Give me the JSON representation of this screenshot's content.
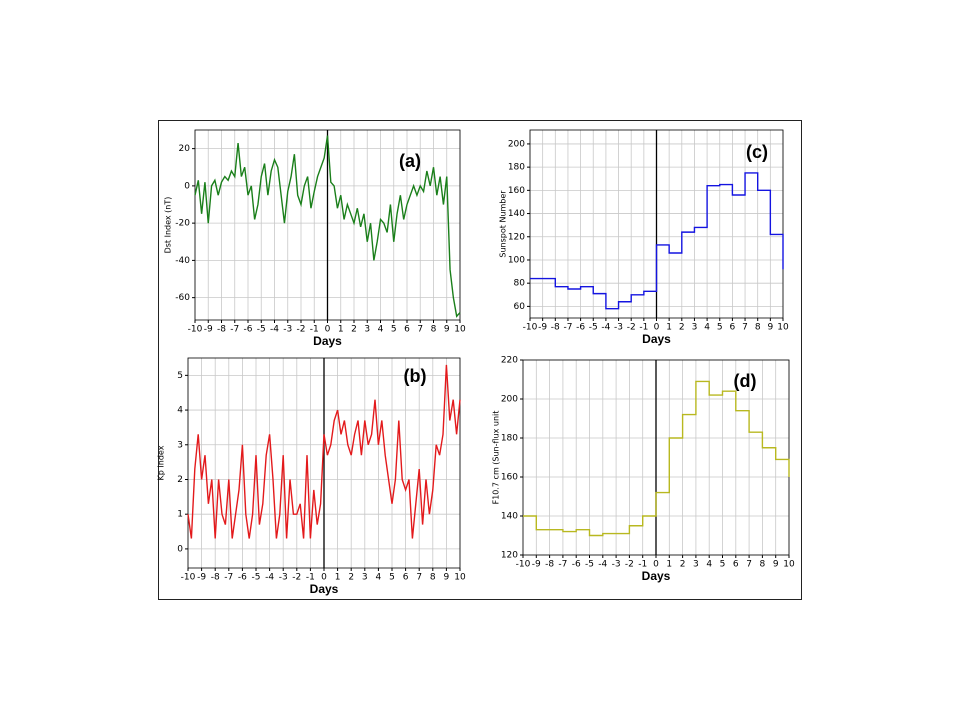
{
  "chart_data": [
    {
      "type": "line",
      "ylabel": "Dst Index (nT)",
      "xlabel": "Days",
      "annotation": "(a)",
      "xlim": [
        -10,
        10
      ],
      "xticks": [
        -10,
        -9,
        -8,
        -7,
        -6,
        -5,
        -4,
        -3,
        -2,
        -1,
        0,
        1,
        2,
        3,
        4,
        5,
        6,
        7,
        8,
        9,
        10
      ],
      "ylim": [
        -72,
        30
      ],
      "yticks": [
        -60,
        -40,
        -20,
        0,
        20
      ],
      "grid": true,
      "vline": 0,
      "x": [
        -10,
        -9.75,
        -9.5,
        -9.25,
        -9,
        -8.75,
        -8.5,
        -8.25,
        -8,
        -7.75,
        -7.5,
        -7.25,
        -7,
        -6.75,
        -6.5,
        -6.25,
        -6,
        -5.75,
        -5.5,
        -5.25,
        -5,
        -4.75,
        -4.5,
        -4.25,
        -4,
        -3.75,
        -3.5,
        -3.25,
        -3,
        -2.75,
        -2.5,
        -2.25,
        -2,
        -1.75,
        -1.5,
        -1.25,
        -1,
        -0.75,
        -0.5,
        -0.25,
        0,
        0.25,
        0.5,
        0.75,
        1,
        1.25,
        1.5,
        1.75,
        2,
        2.25,
        2.5,
        2.75,
        3,
        3.25,
        3.5,
        3.75,
        4,
        4.25,
        4.5,
        4.75,
        5,
        5.25,
        5.5,
        5.75,
        6,
        6.25,
        6.5,
        6.75,
        7,
        7.25,
        7.5,
        7.75,
        8,
        8.25,
        8.5,
        8.75,
        9,
        9.25,
        9.5,
        9.75,
        10
      ],
      "series": [
        {
          "color": "#1a7f1a",
          "values": [
            -5,
            3,
            -15,
            2,
            -20,
            0,
            3,
            -5,
            2,
            5,
            3,
            8,
            5,
            23,
            5,
            10,
            -5,
            0,
            -18,
            -10,
            5,
            12,
            -5,
            8,
            14,
            10,
            -5,
            -20,
            -3,
            5,
            17,
            -5,
            -10,
            0,
            5,
            -12,
            -3,
            5,
            10,
            15,
            27,
            2,
            0,
            -12,
            -5,
            -18,
            -10,
            -15,
            -20,
            -12,
            -22,
            -15,
            -30,
            -20,
            -40,
            -30,
            -18,
            -20,
            -25,
            -10,
            -30,
            -15,
            -5,
            -18,
            -10,
            -5,
            0,
            -5,
            0,
            -3,
            8,
            0,
            10,
            -5,
            5,
            -10,
            5,
            -45,
            -60,
            -70,
            -68
          ]
        }
      ]
    },
    {
      "type": "line",
      "ylabel": "Kp Index",
      "xlabel": "Days",
      "annotation": "(b)",
      "xlim": [
        -10,
        10
      ],
      "xticks": [
        -10,
        -9,
        -8,
        -7,
        -6,
        -5,
        -4,
        -3,
        -2,
        -1,
        0,
        1,
        2,
        3,
        4,
        5,
        6,
        7,
        8,
        9,
        10
      ],
      "ylim": [
        -0.55,
        5.5
      ],
      "yticks": [
        0,
        1,
        2,
        3,
        4,
        5
      ],
      "grid": true,
      "vline": 0,
      "x": [
        -10,
        -9.75,
        -9.5,
        -9.25,
        -9,
        -8.75,
        -8.5,
        -8.25,
        -8,
        -7.75,
        -7.5,
        -7.25,
        -7,
        -6.75,
        -6.5,
        -6.25,
        -6,
        -5.75,
        -5.5,
        -5.25,
        -5,
        -4.75,
        -4.5,
        -4.25,
        -4,
        -3.75,
        -3.5,
        -3.25,
        -3,
        -2.75,
        -2.5,
        -2.25,
        -2,
        -1.75,
        -1.5,
        -1.25,
        -1,
        -0.75,
        -0.5,
        -0.25,
        0,
        0.25,
        0.5,
        0.75,
        1,
        1.25,
        1.5,
        1.75,
        2,
        2.25,
        2.5,
        2.75,
        3,
        3.25,
        3.5,
        3.75,
        4,
        4.25,
        4.5,
        4.75,
        5,
        5.25,
        5.5,
        5.75,
        6,
        6.25,
        6.5,
        6.75,
        7,
        7.25,
        7.5,
        7.75,
        8,
        8.25,
        8.5,
        8.75,
        9,
        9.25,
        9.5,
        9.75,
        10
      ],
      "series": [
        {
          "color": "#e31a1c",
          "values": [
            1,
            0.3,
            2.3,
            3.3,
            2,
            2.7,
            1.3,
            2,
            0.3,
            2,
            1,
            0.7,
            2,
            0.3,
            1,
            1.7,
            3,
            1,
            0.3,
            1,
            2.7,
            0.7,
            1.3,
            2.7,
            3.3,
            2,
            0.3,
            1,
            2.7,
            0.3,
            2,
            1,
            1,
            1.3,
            0.3,
            2.7,
            0.3,
            1.7,
            0.7,
            1.3,
            3.3,
            2.7,
            3,
            3.7,
            4,
            3.3,
            3.7,
            3,
            2.7,
            3.3,
            3.7,
            2.7,
            3.7,
            3,
            3.3,
            4.3,
            3,
            3.7,
            2.7,
            2,
            1.3,
            2,
            3.7,
            2,
            1.7,
            2,
            0.3,
            1.3,
            2.3,
            0.7,
            2,
            1,
            1.7,
            3,
            2.7,
            3.3,
            5.3,
            3.7,
            4.3,
            3.3,
            4.3
          ]
        }
      ]
    },
    {
      "type": "line",
      "drawstyle": "steps-post",
      "ylabel": "Sunspot Number",
      "xlabel": "Days",
      "annotation": "(c)",
      "xlim": [
        -10,
        10
      ],
      "xticks": [
        -10,
        -9,
        -8,
        -7,
        -6,
        -5,
        -4,
        -3,
        -2,
        -1,
        0,
        1,
        2,
        3,
        4,
        5,
        6,
        7,
        8,
        9,
        10
      ],
      "ylim": [
        50,
        212
      ],
      "yticks": [
        60,
        80,
        100,
        120,
        140,
        160,
        180,
        200
      ],
      "grid": true,
      "vline": 0,
      "x": [
        -10,
        -9,
        -8,
        -7,
        -6,
        -5,
        -4,
        -3,
        -2,
        -1,
        0,
        1,
        2,
        3,
        4,
        5,
        6,
        7,
        8,
        9,
        10
      ],
      "series": [
        {
          "color": "#1414e0",
          "values": [
            84,
            84,
            77,
            75,
            77,
            71,
            58,
            64,
            70,
            73,
            113,
            106,
            124,
            128,
            164,
            165,
            156,
            175,
            160,
            122,
            92
          ]
        }
      ]
    },
    {
      "type": "line",
      "drawstyle": "steps-post",
      "ylabel": "F10.7 cm (Sun-flux unit",
      "xlabel": "Days",
      "annotation": "(d)",
      "xlim": [
        -10,
        10
      ],
      "xticks": [
        -10,
        -9,
        -8,
        -7,
        -6,
        -5,
        -4,
        -3,
        -2,
        -1,
        0,
        1,
        2,
        3,
        4,
        5,
        6,
        7,
        8,
        9,
        10
      ],
      "ylim": [
        120,
        220
      ],
      "yticks": [
        120,
        140,
        160,
        180,
        200,
        220
      ],
      "grid": true,
      "vline": 0,
      "x": [
        -10,
        -9,
        -8,
        -7,
        -6,
        -5,
        -4,
        -3,
        -2,
        -1,
        0,
        1,
        2,
        3,
        4,
        5,
        6,
        7,
        8,
        9,
        10
      ],
      "series": [
        {
          "color": "#b8b820",
          "values": [
            140,
            133,
            133,
            132,
            133,
            130,
            131,
            131,
            135,
            140,
            152,
            180,
            192,
            209,
            202,
            204,
            194,
            183,
            175,
            169,
            160
          ]
        }
      ]
    }
  ]
}
